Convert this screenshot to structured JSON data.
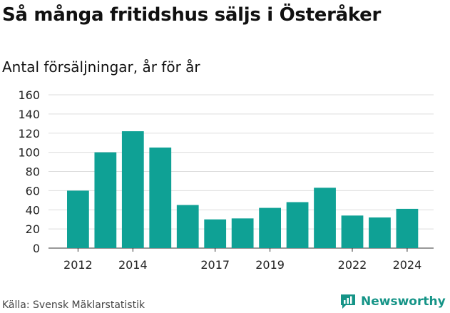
{
  "title": "Så många fritidshus säljs i Österåker",
  "subtitle": "Antal försäljningar, år för år",
  "source": "Källa: Svensk Mäklarstatistik",
  "brand": {
    "name": "Newsworthy",
    "icon": "newsworthy-logo-icon",
    "color": "#159487"
  },
  "chart_data": {
    "type": "bar",
    "title": "Så många fritidshus säljs i Österåker",
    "ylabel": "Antal försäljningar, år för år",
    "categories": [
      "2012",
      "2013",
      "2014",
      "2015",
      "2016",
      "2017",
      "2018",
      "2019",
      "2020",
      "2021",
      "2022",
      "2023",
      "2024"
    ],
    "values": [
      60,
      100,
      122,
      105,
      45,
      30,
      31,
      42,
      48,
      63,
      34,
      32,
      41
    ],
    "x_tick_labels": [
      "2012",
      "2014",
      "2017",
      "2019",
      "2022",
      "2024"
    ],
    "y_ticks": [
      0,
      20,
      40,
      60,
      80,
      100,
      120,
      140,
      160
    ],
    "ylim": [
      0,
      160
    ],
    "grid": true,
    "legend": "none",
    "bar_color": "#0fa195"
  }
}
